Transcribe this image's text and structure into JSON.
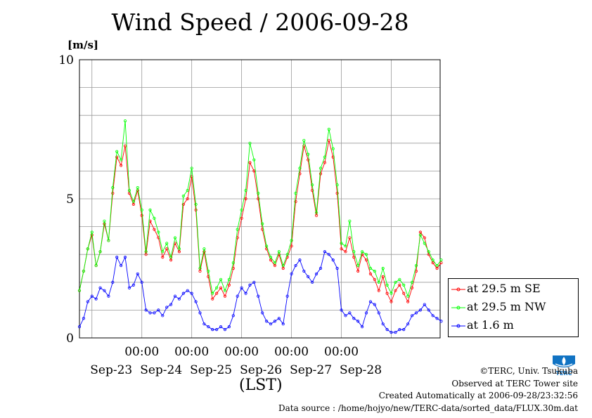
{
  "chart_data": {
    "type": "line",
    "title": "Wind Speed / 2006-09-28",
    "ylabel": "[m/s]",
    "xlabel": "(LST)",
    "ylim": [
      0,
      10
    ],
    "yticks": [
      "0",
      "5",
      "10"
    ],
    "x_time_ticks": [
      "00:00",
      "00:00",
      "00:00",
      "00:00",
      "00:00"
    ],
    "x_date_labels": [
      "Sep-23",
      "Sep-24",
      "Sep-25",
      "Sep-26",
      "Sep-27",
      "Sep-28"
    ],
    "x_hours_start": "2006-09-22 18:00",
    "x_hours_end": "2006-09-28 23:30",
    "grid": true,
    "legend_position": "bottom-right-outside",
    "series": [
      {
        "name": "at 29.5 m SE",
        "color": "#ff0000",
        "points": [
          [
            0,
            1.7
          ],
          [
            2,
            2.4
          ],
          [
            4,
            3.2
          ],
          [
            6,
            3.7
          ],
          [
            8,
            2.6
          ],
          [
            10,
            3.1
          ],
          [
            12,
            4.1
          ],
          [
            14,
            3.5
          ],
          [
            16,
            5.2
          ],
          [
            18,
            6.5
          ],
          [
            20,
            6.2
          ],
          [
            22,
            6.9
          ],
          [
            24,
            5.2
          ],
          [
            26,
            4.8
          ],
          [
            28,
            5.3
          ],
          [
            30,
            4.4
          ],
          [
            32,
            3.0
          ],
          [
            34,
            4.2
          ],
          [
            36,
            3.9
          ],
          [
            38,
            3.6
          ],
          [
            40,
            2.9
          ],
          [
            42,
            3.2
          ],
          [
            44,
            2.8
          ],
          [
            46,
            3.4
          ],
          [
            48,
            3.1
          ],
          [
            50,
            4.8
          ],
          [
            52,
            5.0
          ],
          [
            54,
            5.8
          ],
          [
            56,
            4.6
          ],
          [
            58,
            2.4
          ],
          [
            60,
            3.1
          ],
          [
            62,
            2.2
          ],
          [
            64,
            1.4
          ],
          [
            66,
            1.6
          ],
          [
            68,
            1.8
          ],
          [
            70,
            1.5
          ],
          [
            72,
            1.9
          ],
          [
            74,
            2.5
          ],
          [
            76,
            3.6
          ],
          [
            78,
            4.3
          ],
          [
            80,
            5.0
          ],
          [
            82,
            6.3
          ],
          [
            84,
            6.0
          ],
          [
            86,
            5.0
          ],
          [
            88,
            3.9
          ],
          [
            90,
            3.2
          ],
          [
            92,
            2.8
          ],
          [
            94,
            2.6
          ],
          [
            96,
            3.0
          ],
          [
            98,
            2.5
          ],
          [
            100,
            2.9
          ],
          [
            102,
            3.3
          ],
          [
            104,
            4.9
          ],
          [
            106,
            5.9
          ],
          [
            108,
            6.9
          ],
          [
            110,
            6.4
          ],
          [
            112,
            5.3
          ],
          [
            114,
            4.4
          ],
          [
            116,
            5.9
          ],
          [
            118,
            6.3
          ],
          [
            120,
            7.1
          ],
          [
            122,
            6.5
          ],
          [
            124,
            5.2
          ],
          [
            126,
            3.2
          ],
          [
            128,
            3.1
          ],
          [
            130,
            3.6
          ],
          [
            132,
            2.9
          ],
          [
            134,
            2.4
          ],
          [
            136,
            3.0
          ],
          [
            138,
            2.8
          ],
          [
            140,
            2.3
          ],
          [
            142,
            2.1
          ],
          [
            144,
            1.7
          ],
          [
            146,
            2.2
          ],
          [
            148,
            1.6
          ],
          [
            150,
            1.3
          ],
          [
            152,
            1.7
          ],
          [
            154,
            1.9
          ],
          [
            156,
            1.6
          ],
          [
            158,
            1.3
          ],
          [
            160,
            1.8
          ],
          [
            162,
            2.4
          ],
          [
            164,
            3.8
          ],
          [
            166,
            3.6
          ],
          [
            168,
            3.0
          ],
          [
            170,
            2.7
          ],
          [
            172,
            2.5
          ],
          [
            174,
            2.7
          ]
        ]
      },
      {
        "name": "at 29.5 m NW",
        "color": "#00ff00",
        "points": [
          [
            0,
            1.7
          ],
          [
            2,
            2.4
          ],
          [
            4,
            3.2
          ],
          [
            6,
            3.8
          ],
          [
            8,
            2.6
          ],
          [
            10,
            3.1
          ],
          [
            12,
            4.2
          ],
          [
            14,
            3.5
          ],
          [
            16,
            5.4
          ],
          [
            18,
            6.7
          ],
          [
            20,
            6.4
          ],
          [
            22,
            7.8
          ],
          [
            24,
            5.3
          ],
          [
            26,
            4.9
          ],
          [
            28,
            5.4
          ],
          [
            30,
            4.6
          ],
          [
            32,
            3.1
          ],
          [
            34,
            4.6
          ],
          [
            36,
            4.3
          ],
          [
            38,
            3.8
          ],
          [
            40,
            3.1
          ],
          [
            42,
            3.4
          ],
          [
            44,
            2.9
          ],
          [
            46,
            3.6
          ],
          [
            48,
            3.2
          ],
          [
            50,
            5.1
          ],
          [
            52,
            5.3
          ],
          [
            54,
            6.1
          ],
          [
            56,
            4.8
          ],
          [
            58,
            2.5
          ],
          [
            60,
            3.2
          ],
          [
            62,
            2.4
          ],
          [
            64,
            1.6
          ],
          [
            66,
            1.8
          ],
          [
            68,
            2.1
          ],
          [
            70,
            1.7
          ],
          [
            72,
            2.1
          ],
          [
            74,
            2.7
          ],
          [
            76,
            3.9
          ],
          [
            78,
            4.6
          ],
          [
            80,
            5.3
          ],
          [
            82,
            7.0
          ],
          [
            84,
            6.4
          ],
          [
            86,
            5.2
          ],
          [
            88,
            4.1
          ],
          [
            90,
            3.3
          ],
          [
            92,
            2.9
          ],
          [
            94,
            2.7
          ],
          [
            96,
            3.1
          ],
          [
            98,
            2.6
          ],
          [
            100,
            3.0
          ],
          [
            102,
            3.5
          ],
          [
            104,
            5.2
          ],
          [
            106,
            6.1
          ],
          [
            108,
            7.1
          ],
          [
            110,
            6.6
          ],
          [
            112,
            5.5
          ],
          [
            114,
            4.5
          ],
          [
            116,
            6.1
          ],
          [
            118,
            6.5
          ],
          [
            120,
            7.5
          ],
          [
            122,
            6.8
          ],
          [
            124,
            5.5
          ],
          [
            126,
            3.4
          ],
          [
            128,
            3.3
          ],
          [
            130,
            4.2
          ],
          [
            132,
            3.1
          ],
          [
            134,
            2.6
          ],
          [
            136,
            3.1
          ],
          [
            138,
            3.0
          ],
          [
            140,
            2.5
          ],
          [
            142,
            2.4
          ],
          [
            144,
            2.0
          ],
          [
            146,
            2.5
          ],
          [
            148,
            1.9
          ],
          [
            150,
            1.6
          ],
          [
            152,
            2.0
          ],
          [
            154,
            2.1
          ],
          [
            156,
            1.9
          ],
          [
            158,
            1.5
          ],
          [
            160,
            2.0
          ],
          [
            162,
            2.6
          ],
          [
            164,
            3.7
          ],
          [
            166,
            3.4
          ],
          [
            168,
            3.1
          ],
          [
            170,
            2.8
          ],
          [
            172,
            2.6
          ],
          [
            174,
            2.8
          ]
        ]
      },
      {
        "name": "at 1.6 m",
        "color": "#0000ff",
        "points": [
          [
            0,
            0.4
          ],
          [
            2,
            0.7
          ],
          [
            4,
            1.3
          ],
          [
            6,
            1.5
          ],
          [
            8,
            1.4
          ],
          [
            10,
            1.8
          ],
          [
            12,
            1.7
          ],
          [
            14,
            1.5
          ],
          [
            16,
            2.0
          ],
          [
            18,
            2.9
          ],
          [
            20,
            2.6
          ],
          [
            22,
            2.9
          ],
          [
            24,
            1.8
          ],
          [
            26,
            1.9
          ],
          [
            28,
            2.3
          ],
          [
            30,
            2.0
          ],
          [
            32,
            1.0
          ],
          [
            34,
            0.9
          ],
          [
            36,
            0.9
          ],
          [
            38,
            1.0
          ],
          [
            40,
            0.8
          ],
          [
            42,
            1.1
          ],
          [
            44,
            1.2
          ],
          [
            46,
            1.5
          ],
          [
            48,
            1.4
          ],
          [
            50,
            1.6
          ],
          [
            52,
            1.7
          ],
          [
            54,
            1.6
          ],
          [
            56,
            1.3
          ],
          [
            58,
            0.9
          ],
          [
            60,
            0.5
          ],
          [
            62,
            0.4
          ],
          [
            64,
            0.3
          ],
          [
            66,
            0.3
          ],
          [
            68,
            0.4
          ],
          [
            70,
            0.3
          ],
          [
            72,
            0.4
          ],
          [
            74,
            0.8
          ],
          [
            76,
            1.5
          ],
          [
            78,
            1.8
          ],
          [
            80,
            1.6
          ],
          [
            82,
            1.9
          ],
          [
            84,
            2.0
          ],
          [
            86,
            1.5
          ],
          [
            88,
            0.9
          ],
          [
            90,
            0.6
          ],
          [
            92,
            0.5
          ],
          [
            94,
            0.6
          ],
          [
            96,
            0.7
          ],
          [
            98,
            0.5
          ],
          [
            100,
            1.5
          ],
          [
            102,
            2.3
          ],
          [
            104,
            2.6
          ],
          [
            106,
            2.8
          ],
          [
            108,
            2.4
          ],
          [
            110,
            2.2
          ],
          [
            112,
            2.0
          ],
          [
            114,
            2.3
          ],
          [
            116,
            2.5
          ],
          [
            118,
            3.1
          ],
          [
            120,
            3.0
          ],
          [
            122,
            2.8
          ],
          [
            124,
            2.5
          ],
          [
            126,
            1.0
          ],
          [
            128,
            0.8
          ],
          [
            130,
            0.9
          ],
          [
            132,
            0.7
          ],
          [
            134,
            0.6
          ],
          [
            136,
            0.4
          ],
          [
            138,
            0.9
          ],
          [
            140,
            1.3
          ],
          [
            142,
            1.2
          ],
          [
            144,
            0.9
          ],
          [
            146,
            0.5
          ],
          [
            148,
            0.3
          ],
          [
            150,
            0.2
          ],
          [
            152,
            0.2
          ],
          [
            154,
            0.3
          ],
          [
            156,
            0.3
          ],
          [
            158,
            0.5
          ],
          [
            160,
            0.8
          ],
          [
            162,
            0.9
          ],
          [
            164,
            1.0
          ],
          [
            166,
            1.2
          ],
          [
            168,
            1.0
          ],
          [
            170,
            0.8
          ],
          [
            172,
            0.7
          ],
          [
            174,
            0.6
          ]
        ]
      }
    ]
  },
  "credits": {
    "copyright": "©TERC, Univ. Tsukuba",
    "observed": "Observed at TERC Tower site",
    "created": "Created Automatically at 2006-09-28/23:32:56",
    "source": "Data source : /home/hojyo/new/TERC-data/sorted_data/FLUX.30m.dat"
  },
  "logo": {
    "text": "TERC",
    "color": "#1173c3"
  }
}
